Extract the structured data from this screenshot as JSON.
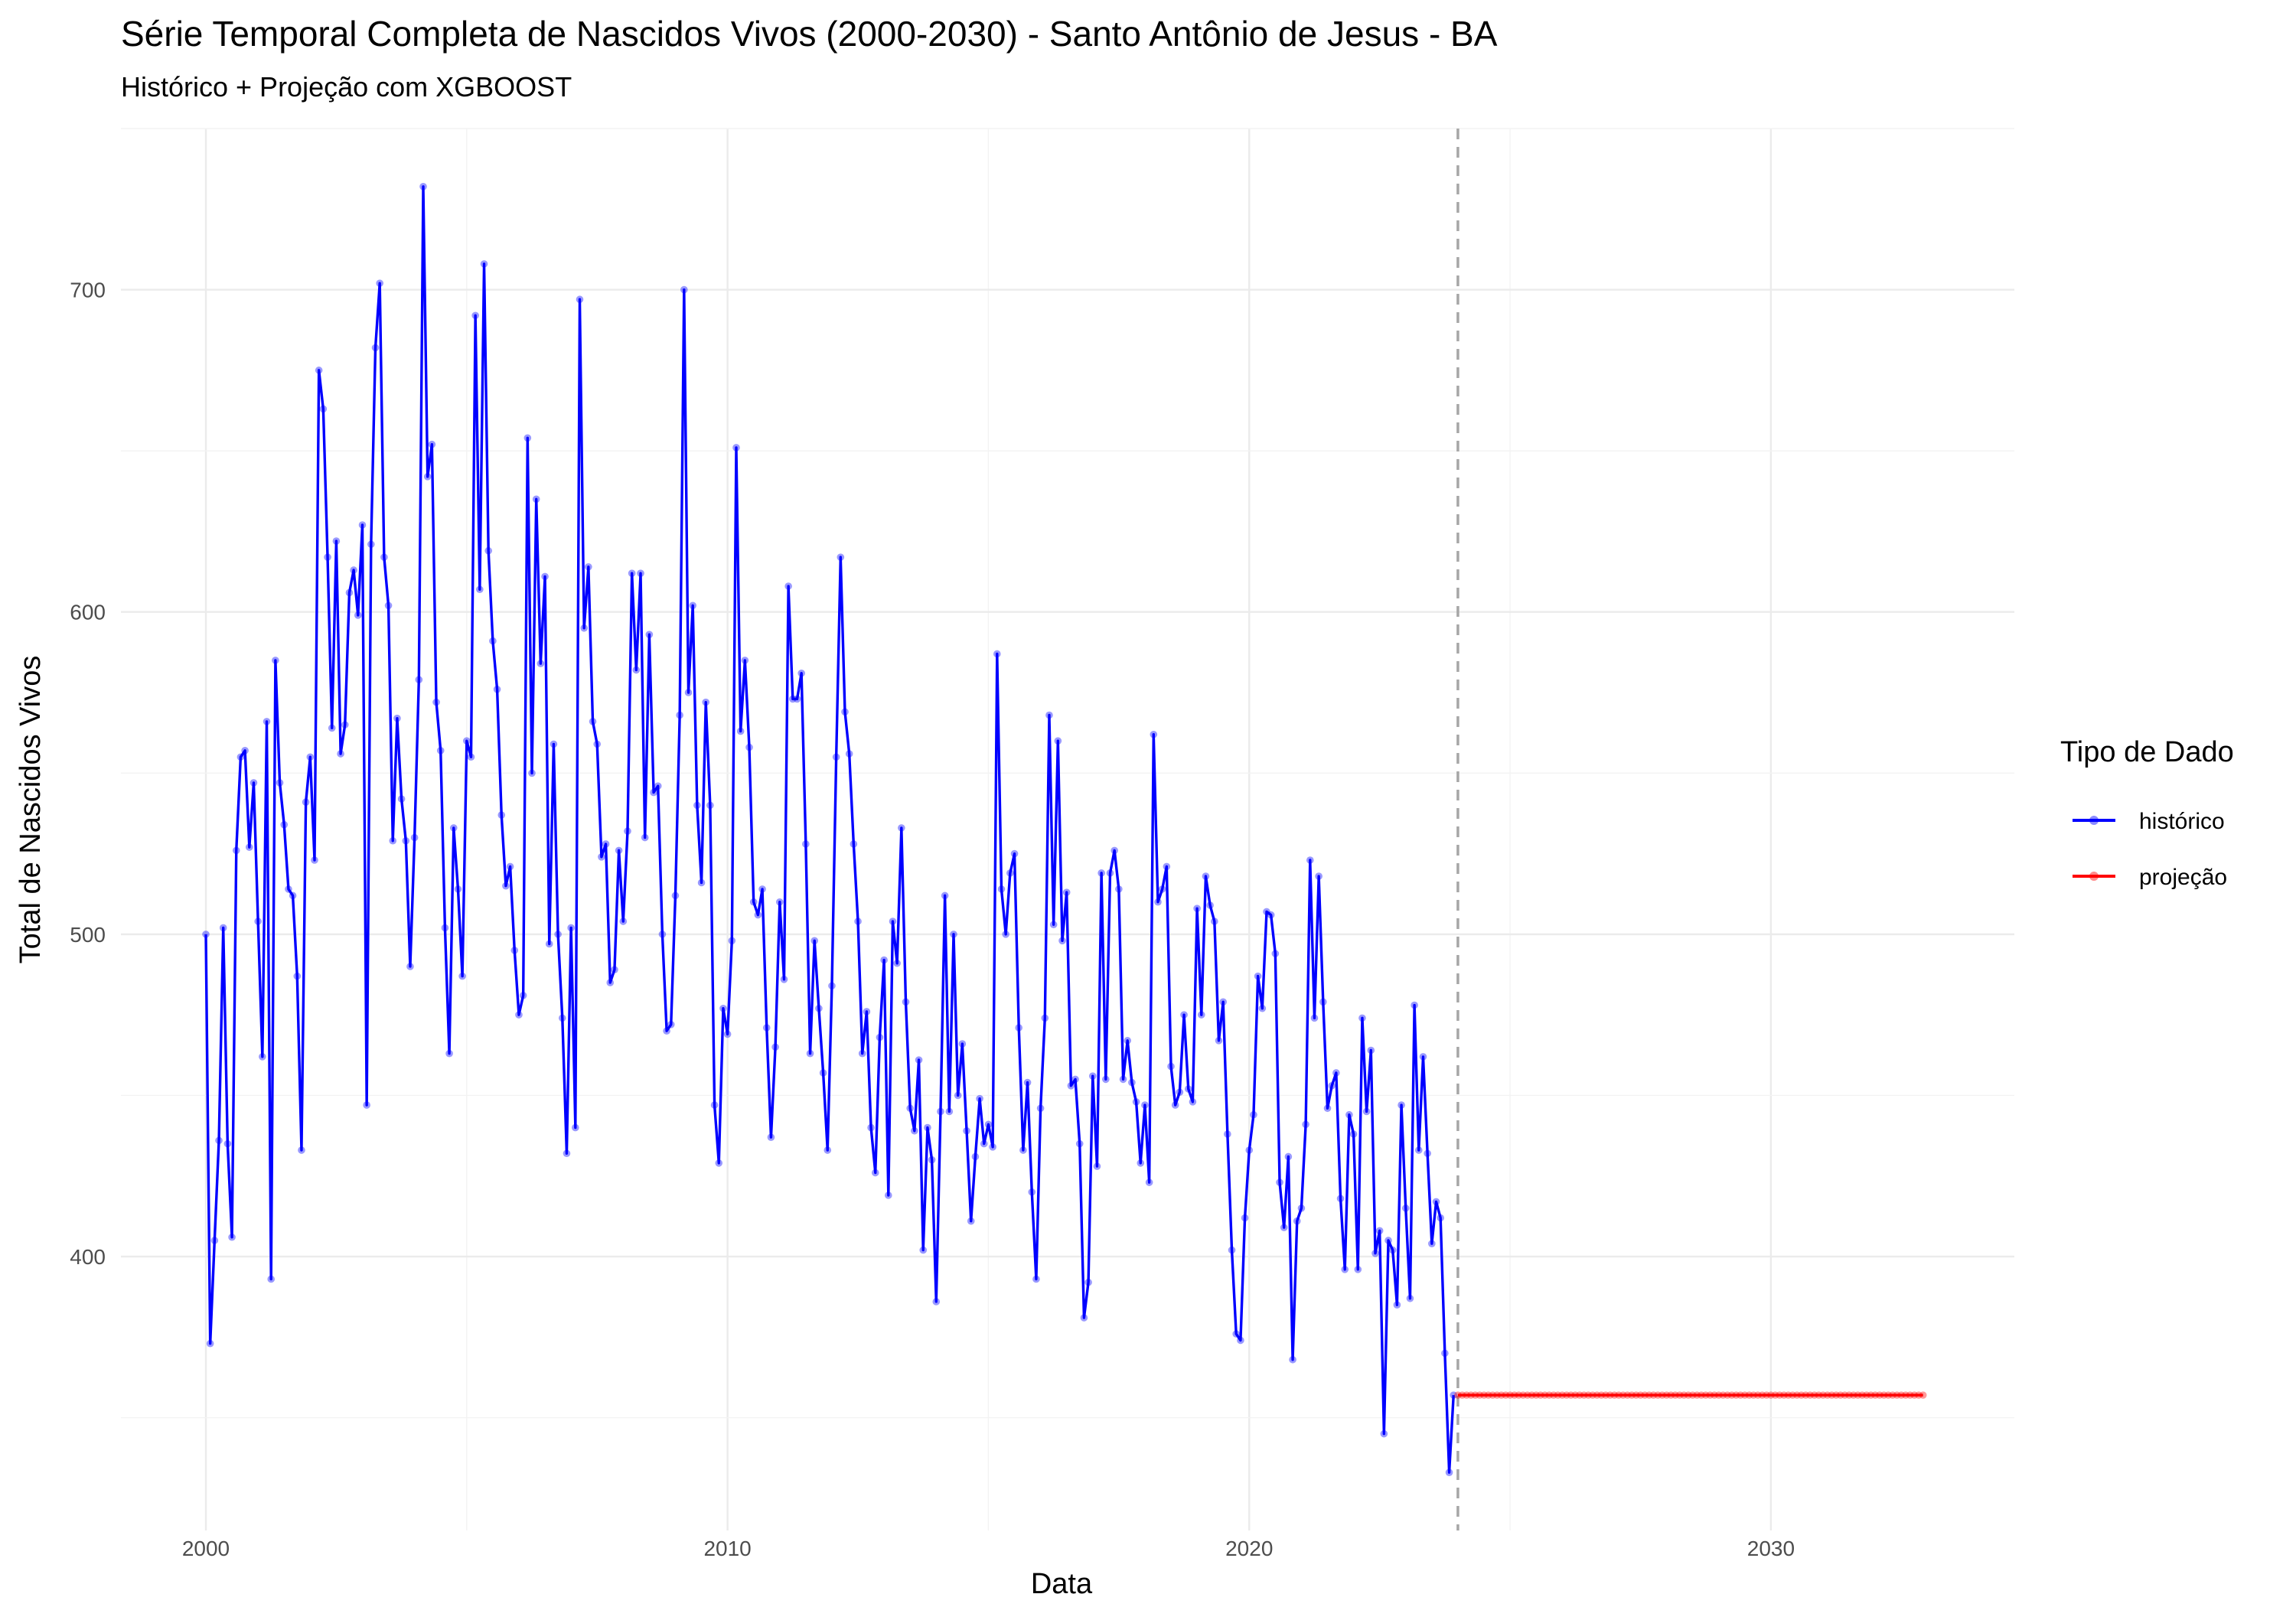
{
  "chart_data": {
    "type": "line",
    "title": "Série Temporal Completa de Nascidos Vivos (2000-2030) -  Santo Antônio de Jesus - BA",
    "subtitle": "Histórico + Projeção com XGBOOST",
    "xlabel": "Data",
    "ylabel": "Total de Nascidos Vivos",
    "xlim": [
      "1998-05-15",
      "2034-09-01"
    ],
    "ylim": [
      315,
      750
    ],
    "x_ticks": [
      "2000",
      "2010",
      "2020",
      "2030"
    ],
    "y_ticks": [
      400,
      500,
      600,
      700
    ],
    "grid": true,
    "vline_date": "2024-01-01",
    "legend": {
      "title": "Tipo de Dado",
      "position": "right",
      "entries": [
        {
          "label": "histórico",
          "color": "#0000ff"
        },
        {
          "label": "projeção",
          "color": "#ff0000"
        }
      ]
    },
    "series": [
      {
        "name": "histórico",
        "color": "#0000ff",
        "start": "2000-01",
        "frequency": "monthly",
        "values": [
          500,
          373,
          405,
          436,
          502,
          435,
          406,
          526,
          555,
          557,
          527,
          547,
          504,
          462,
          566,
          393,
          585,
          547,
          534,
          514,
          512,
          487,
          433,
          541,
          555,
          523,
          675,
          663,
          617,
          564,
          622,
          556,
          565,
          606,
          613,
          599,
          627,
          447,
          621,
          682,
          702,
          617,
          602,
          529,
          567,
          542,
          529,
          490,
          530,
          579,
          732,
          642,
          652,
          572,
          557,
          502,
          463,
          533,
          514,
          487,
          560,
          555,
          692,
          607,
          708,
          619,
          591,
          576,
          537,
          515,
          521,
          495,
          475,
          481,
          654,
          550,
          635,
          584,
          611,
          497,
          559,
          500,
          474,
          432,
          502,
          440,
          697,
          595,
          614,
          566,
          559,
          524,
          528,
          485,
          489,
          526,
          504,
          532,
          612,
          582,
          612,
          530,
          593,
          544,
          546,
          500,
          470,
          472,
          512,
          568,
          700,
          575,
          602,
          540,
          516,
          572,
          540,
          447,
          429,
          477,
          469,
          498,
          651,
          563,
          585,
          558,
          510,
          506,
          514,
          471,
          437,
          465,
          510,
          486,
          608,
          573,
          573,
          581,
          528,
          463,
          498,
          477,
          457,
          433,
          484,
          555,
          617,
          569,
          556,
          528,
          504,
          463,
          476,
          440,
          426,
          468,
          492,
          419,
          504,
          491,
          533,
          479,
          446,
          439,
          461,
          402,
          440,
          430,
          386,
          445,
          512,
          445,
          500,
          450,
          466,
          439,
          411,
          431,
          449,
          435,
          441,
          434,
          587,
          514,
          500,
          519,
          525,
          471,
          433,
          454,
          420,
          393,
          446,
          474,
          568,
          503,
          560,
          498,
          513,
          453,
          455,
          435,
          381,
          392,
          456,
          428,
          519,
          455,
          519,
          526,
          514,
          455,
          467,
          454,
          448,
          429,
          447,
          423,
          562,
          510,
          514,
          521,
          459,
          447,
          451,
          475,
          452,
          448,
          508,
          475,
          518,
          509,
          504,
          467,
          479,
          438,
          402,
          376,
          374,
          412,
          433,
          444,
          487,
          477,
          507,
          506,
          494,
          423,
          409,
          431,
          368,
          411,
          415,
          441,
          523,
          474,
          518,
          479,
          446,
          453,
          457,
          418,
          396,
          444,
          438,
          396,
          474,
          445,
          464,
          401,
          408,
          345,
          405,
          402,
          385,
          447,
          415,
          387,
          478,
          433,
          462,
          432,
          404,
          417,
          412,
          370,
          333,
          357
        ]
      },
      {
        "name": "projeção",
        "color": "#ff0000",
        "start": "2024-01",
        "end": "2032-12",
        "frequency": "monthly",
        "value": 357
      }
    ]
  }
}
